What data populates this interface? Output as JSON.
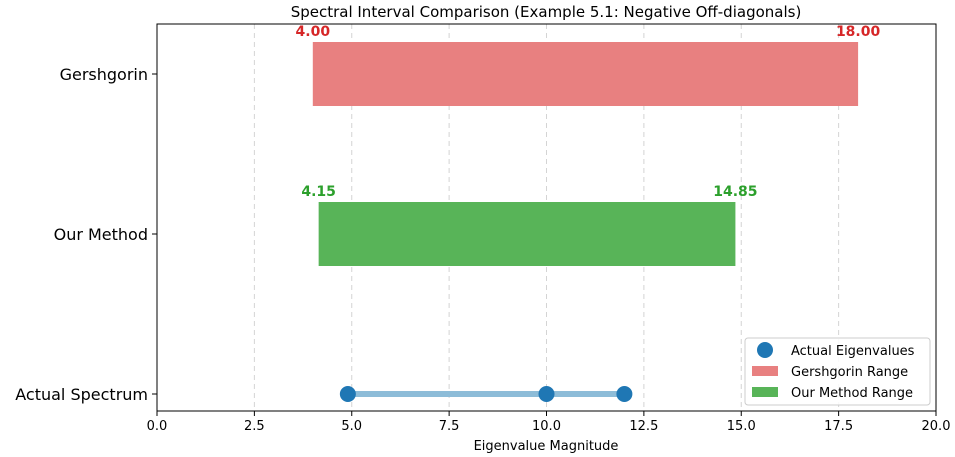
{
  "chart_data": {
    "type": "bar",
    "orientation": "horizontal-range",
    "title": "Spectral Interval Comparison (Example 5.1: Negative Off-diagonals)",
    "xlabel": "Eigenvalue Magnitude",
    "xlim": [
      0,
      20
    ],
    "xticks": [
      0,
      2.5,
      5,
      7.5,
      10,
      12.5,
      15,
      17.5,
      20
    ],
    "xtick_labels": [
      "0.0",
      "2.5",
      "5.0",
      "7.5",
      "10.0",
      "12.5",
      "15.0",
      "17.5",
      "20.0"
    ],
    "grid": "x-dashed",
    "categories": [
      "Gershgorin",
      "Our Method",
      "Actual Spectrum"
    ],
    "ranges": [
      {
        "category": "Gershgorin",
        "start": 4.0,
        "end": 18.0,
        "start_label": "4.00",
        "end_label": "18.00",
        "color": "#e88080"
      },
      {
        "category": "Our Method",
        "start": 4.15,
        "end": 14.85,
        "start_label": "4.15",
        "end_label": "14.85",
        "color": "#58b458"
      }
    ],
    "label_colors": {
      "Gershgorin": "#d62728",
      "Our Method": "#2ca02c"
    },
    "eigenvalues": [
      4.9,
      10.0,
      12.0
    ],
    "eigen_color": "#1f77b4",
    "eigen_line_color": "#8dbcd8",
    "legend": {
      "placement": "lower-right",
      "entries": [
        {
          "label": "Actual Eigenvalues",
          "kind": "marker",
          "color": "#1f77b4"
        },
        {
          "label": "Gershgorin Range",
          "kind": "patch",
          "color": "#e88080"
        },
        {
          "label": "Our Method Range",
          "kind": "patch",
          "color": "#58b458"
        }
      ]
    }
  }
}
